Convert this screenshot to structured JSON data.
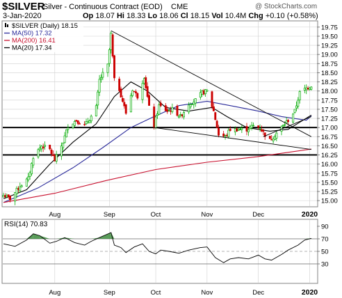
{
  "header": {
    "ticker": "$SILVER",
    "series_title": "Silver - Continuous Contract (EOD)",
    "exchange": "CME",
    "watermark": "@ StockCharts.com",
    "date": "3-Jan-2020",
    "quote": {
      "open_label": "Op",
      "open": "18.07",
      "high_label": "Hi",
      "high": "18.33",
      "low_label": "Lo",
      "low": "18.06",
      "close_label": "Cl",
      "close": "18.15",
      "volume_label": "Vol",
      "volume": "10.4M",
      "change_label": "Chg",
      "change": "+0.10 (+0.58%)"
    }
  },
  "legend": [
    {
      "text": "$SILVER (Daily) 18.15",
      "color": "#000000",
      "swatch": "candles"
    },
    {
      "text": "MA(50) 17.32",
      "color": "#2a2a9a",
      "swatch": "line"
    },
    {
      "text": "MA(200) 16.41",
      "color": "#c8102e",
      "swatch": "line"
    },
    {
      "text": "MA(20) 17.34",
      "color": "#000000",
      "swatch": "line"
    }
  ],
  "colors": {
    "up": "#00aa00",
    "down": "#cc0000",
    "ma20": "#000000",
    "ma50": "#2a2a9a",
    "ma200": "#c8102e",
    "rsi": "#000000",
    "rsi_fill": "#3d8c3d",
    "grid": "#cfcfcf",
    "bg": "#ffffff"
  },
  "chart_data": [
    {
      "type": "candlestick",
      "y_axis_position": "right",
      "ylim": [
        14.85,
        19.9
      ],
      "y_ticks": [
        "15.00",
        "15.25",
        "15.50",
        "15.75",
        "16.00",
        "16.25",
        "16.50",
        "16.75",
        "17.00",
        "17.25",
        "17.50",
        "17.75",
        "18.00",
        "18.25",
        "18.50",
        "18.75",
        "19.00",
        "19.25",
        "19.50",
        "19.75"
      ],
      "x_range": [
        "2019-07-01",
        "2020-01-06"
      ],
      "x_ticks": [
        {
          "label": "Aug",
          "date": "2019-08-01"
        },
        {
          "label": "Sep",
          "date": "2019-09-03"
        },
        {
          "label": "Oct",
          "date": "2019-10-01"
        },
        {
          "label": "Nov",
          "date": "2019-11-01"
        },
        {
          "label": "Dec",
          "date": "2019-12-02"
        },
        {
          "label": "2020",
          "date": "2020-01-02"
        }
      ],
      "grid": true,
      "legend": "top-left",
      "knots": [
        [
          "2019-07-01",
          15.15
        ],
        [
          "2019-07-05",
          15.05
        ],
        [
          "2019-07-11",
          15.4
        ],
        [
          "2019-07-16",
          15.6
        ],
        [
          "2019-07-19",
          16.2
        ],
        [
          "2019-07-24",
          16.5
        ],
        [
          "2019-07-29",
          16.4
        ],
        [
          "2019-08-01",
          16.1
        ],
        [
          "2019-08-06",
          16.6
        ],
        [
          "2019-08-09",
          17.05
        ],
        [
          "2019-08-14",
          17.2
        ],
        [
          "2019-08-19",
          17.05
        ],
        [
          "2019-08-23",
          17.3
        ],
        [
          "2019-08-26",
          17.55
        ],
        [
          "2019-08-28",
          18.3
        ],
        [
          "2019-09-02",
          18.7
        ],
        [
          "2019-09-04",
          19.55
        ],
        [
          "2019-09-06",
          18.3
        ],
        [
          "2019-09-09",
          18.05
        ],
        [
          "2019-09-13",
          17.4
        ],
        [
          "2019-09-17",
          18.05
        ],
        [
          "2019-09-20",
          17.85
        ],
        [
          "2019-09-24",
          18.4
        ],
        [
          "2019-09-27",
          17.55
        ],
        [
          "2019-09-30",
          17.05
        ],
        [
          "2019-10-03",
          17.6
        ],
        [
          "2019-10-08",
          17.45
        ],
        [
          "2019-10-11",
          17.5
        ],
        [
          "2019-10-16",
          17.3
        ],
        [
          "2019-10-21",
          17.65
        ],
        [
          "2019-10-25",
          17.75
        ],
        [
          "2019-10-29",
          17.95
        ],
        [
          "2019-11-01",
          18.0
        ],
        [
          "2019-11-05",
          17.45
        ],
        [
          "2019-11-08",
          16.8
        ],
        [
          "2019-11-12",
          16.75
        ],
        [
          "2019-11-15",
          16.95
        ],
        [
          "2019-11-20",
          16.95
        ],
        [
          "2019-11-25",
          16.95
        ],
        [
          "2019-11-29",
          17.05
        ],
        [
          "2019-12-03",
          17.0
        ],
        [
          "2019-12-06",
          16.8
        ],
        [
          "2019-12-09",
          16.65
        ],
        [
          "2019-12-13",
          16.85
        ],
        [
          "2019-12-17",
          17.05
        ],
        [
          "2019-12-20",
          17.2
        ],
        [
          "2019-12-24",
          17.45
        ],
        [
          "2019-12-27",
          17.95
        ],
        [
          "2019-12-30",
          18.05
        ],
        [
          "2020-01-03",
          18.15
        ]
      ],
      "moving_averages": [
        {
          "name": "MA(50)",
          "color": "#2a2a9a",
          "points": [
            [
              "2019-07-01",
              14.95
            ],
            [
              "2019-07-22",
              15.35
            ],
            [
              "2019-08-12",
              15.9
            ],
            [
              "2019-08-30",
              16.45
            ],
            [
              "2019-09-16",
              17.0
            ],
            [
              "2019-09-30",
              17.3
            ],
            [
              "2019-10-15",
              17.6
            ],
            [
              "2019-11-01",
              17.72
            ],
            [
              "2019-11-15",
              17.6
            ],
            [
              "2019-12-02",
              17.45
            ],
            [
              "2019-12-16",
              17.3
            ],
            [
              "2019-12-31",
              17.2
            ],
            [
              "2020-01-03",
              17.32
            ]
          ]
        },
        {
          "name": "MA(200)",
          "color": "#c8102e",
          "points": [
            [
              "2019-07-01",
              14.95
            ],
            [
              "2019-08-01",
              15.2
            ],
            [
              "2019-09-01",
              15.55
            ],
            [
              "2019-10-01",
              15.85
            ],
            [
              "2019-11-01",
              16.05
            ],
            [
              "2019-12-01",
              16.2
            ],
            [
              "2020-01-03",
              16.41
            ]
          ]
        },
        {
          "name": "MA(20)",
          "color": "#000000",
          "points": [
            [
              "2019-07-01",
              15.05
            ],
            [
              "2019-07-15",
              15.3
            ],
            [
              "2019-07-29",
              16.0
            ],
            [
              "2019-08-12",
              16.6
            ],
            [
              "2019-08-26",
              17.1
            ],
            [
              "2019-09-06",
              17.85
            ],
            [
              "2019-09-16",
              18.25
            ],
            [
              "2019-09-26",
              18.0
            ],
            [
              "2019-10-07",
              17.55
            ],
            [
              "2019-10-21",
              17.45
            ],
            [
              "2019-11-04",
              17.55
            ],
            [
              "2019-11-13",
              17.3
            ],
            [
              "2019-11-25",
              17.0
            ],
            [
              "2019-12-09",
              16.9
            ],
            [
              "2019-12-20",
              16.95
            ],
            [
              "2020-01-03",
              17.34
            ]
          ]
        }
      ],
      "trendlines": [
        {
          "kind": "resistance",
          "from": [
            "2019-09-04",
            19.65
          ],
          "to": [
            "2020-01-03",
            16.75
          ]
        },
        {
          "kind": "support",
          "from": [
            "2019-09-30",
            17.0
          ],
          "to": [
            "2020-01-03",
            16.4
          ]
        },
        {
          "kind": "short-term",
          "from": [
            "2019-12-05",
            16.75
          ],
          "to": [
            "2020-01-03",
            17.3
          ]
        }
      ],
      "horizontal_lines": [
        17.0,
        16.25
      ]
    },
    {
      "type": "line",
      "label": "RSI(14) 70.83",
      "y_axis_position": "right",
      "ylim": [
        0,
        100
      ],
      "y_ticks": [
        "30",
        "50",
        "70",
        "90"
      ],
      "reference_lines": [
        30,
        50,
        70
      ],
      "x_ticks": [
        "Aug",
        "Sep",
        "Oct",
        "Nov",
        "Dec",
        "2020"
      ],
      "fill_above": 70,
      "points": [
        [
          "2019-07-01",
          62
        ],
        [
          "2019-07-08",
          58
        ],
        [
          "2019-07-15",
          68
        ],
        [
          "2019-07-19",
          78
        ],
        [
          "2019-07-23",
          75
        ],
        [
          "2019-07-29",
          63
        ],
        [
          "2019-08-02",
          66
        ],
        [
          "2019-08-07",
          72
        ],
        [
          "2019-08-13",
          64
        ],
        [
          "2019-08-19",
          60
        ],
        [
          "2019-08-23",
          66
        ],
        [
          "2019-08-28",
          72
        ],
        [
          "2019-09-04",
          80
        ],
        [
          "2019-09-06",
          60
        ],
        [
          "2019-09-10",
          56
        ],
        [
          "2019-09-13",
          48
        ],
        [
          "2019-09-18",
          57
        ],
        [
          "2019-09-23",
          62
        ],
        [
          "2019-09-27",
          50
        ],
        [
          "2019-10-01",
          46
        ],
        [
          "2019-10-04",
          52
        ],
        [
          "2019-10-09",
          50
        ],
        [
          "2019-10-15",
          47
        ],
        [
          "2019-10-21",
          52
        ],
        [
          "2019-10-28",
          56
        ],
        [
          "2019-11-01",
          57
        ],
        [
          "2019-11-06",
          40
        ],
        [
          "2019-11-11",
          32
        ],
        [
          "2019-11-15",
          38
        ],
        [
          "2019-11-20",
          40
        ],
        [
          "2019-11-26",
          38
        ],
        [
          "2019-12-02",
          44
        ],
        [
          "2019-12-06",
          38
        ],
        [
          "2019-12-10",
          36
        ],
        [
          "2019-12-16",
          45
        ],
        [
          "2019-12-20",
          52
        ],
        [
          "2019-12-26",
          60
        ],
        [
          "2019-12-30",
          68
        ],
        [
          "2020-01-03",
          70.83
        ]
      ]
    }
  ]
}
